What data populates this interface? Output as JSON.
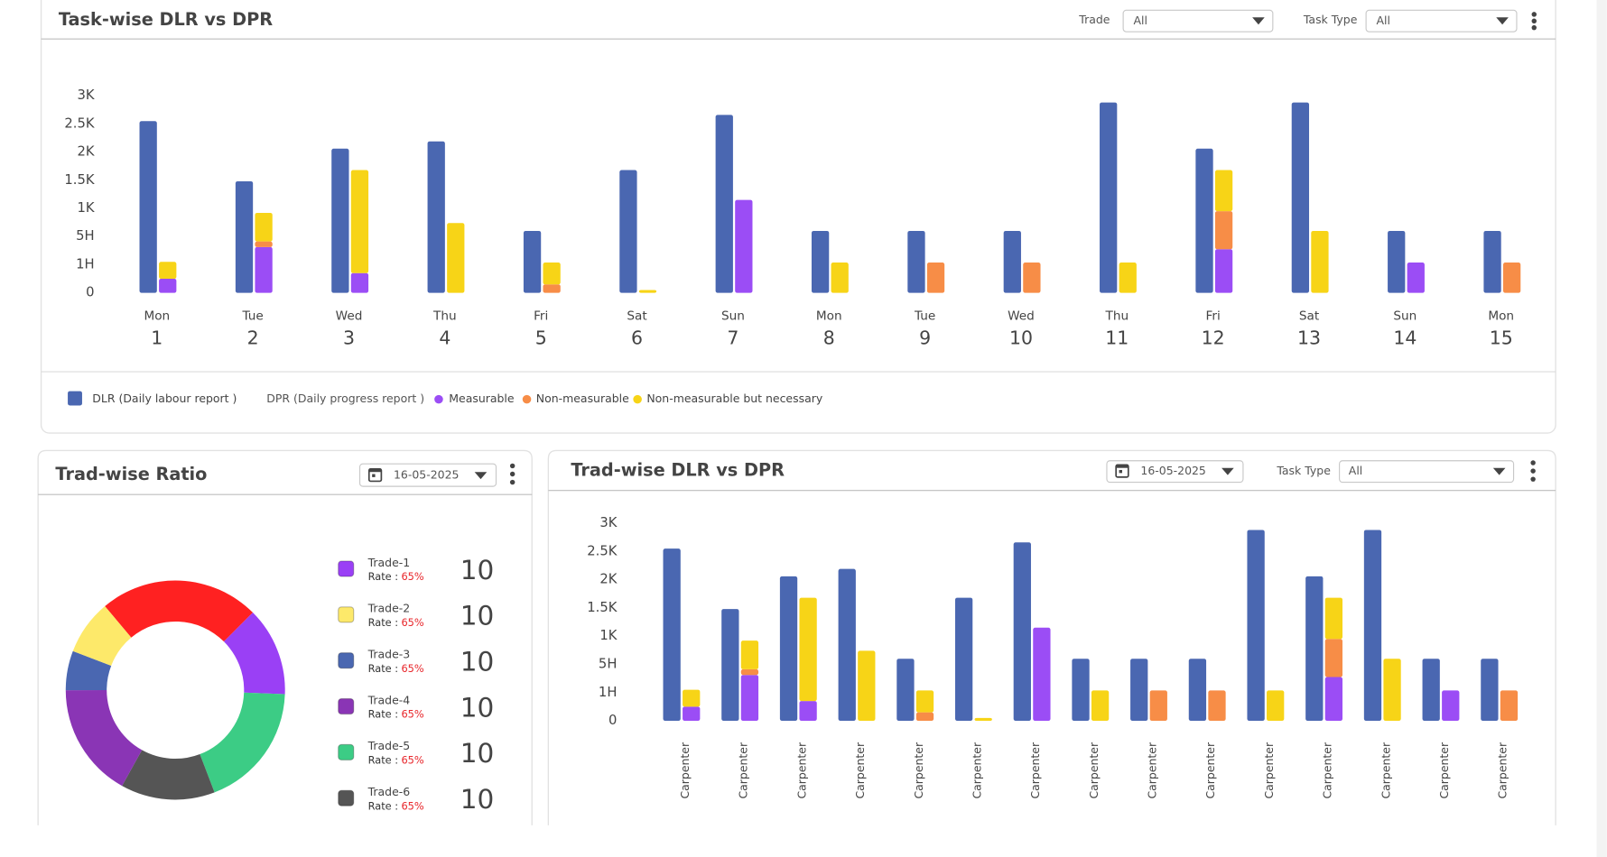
{
  "ui": {
    "top": {
      "trade_label": "Trade",
      "trade_value": "All",
      "task_label": "Task Type",
      "task_value": "All"
    },
    "left": {
      "date": "16-05-2025"
    },
    "right": {
      "date": "16-05-2025",
      "task_label": "Task Type",
      "task_value": "All"
    }
  },
  "chart_data": [
    {
      "type": "bar",
      "title": "Task-wise DLR vs DPR",
      "weekdays": [
        "Mon",
        "Tue",
        "Wed",
        "Thu",
        "Fri",
        "Sat",
        "Sun",
        "Mon",
        "Tue",
        "Wed",
        "Thu",
        "Fri",
        "Sat",
        "Sun",
        "Mon"
      ],
      "categories": [
        "1",
        "2",
        "3",
        "4",
        "5",
        "6",
        "7",
        "8",
        "9",
        "10",
        "11",
        "12",
        "13",
        "14",
        "15"
      ],
      "ylim": [
        0,
        3000
      ],
      "yticks": [
        0,
        {
          "value": 100,
          "label": "1H"
        },
        {
          "value": 500,
          "label": "5H"
        },
        {
          "value": 1000,
          "label": "1K"
        },
        {
          "value": 1500,
          "label": "1.5K"
        },
        {
          "value": 2000,
          "label": "2K"
        },
        {
          "value": 2500,
          "label": "2.5K"
        },
        {
          "value": 3000,
          "label": "3K"
        }
      ],
      "grid": false,
      "dpr_label": "DPR (Daily progress report )",
      "series": [
        {
          "name": "DLR (Daily labour report )",
          "color": "#4a67b1",
          "values": [
            2550,
            1480,
            2060,
            2190,
            600,
            1680,
            2660,
            600,
            600,
            600,
            2880,
            2060,
            2880,
            600,
            600
          ]
        },
        {
          "name": "Measurable",
          "color": "#9b4df5",
          "stack": "DPR",
          "values": [
            50,
            350,
            70,
            0,
            0,
            0,
            1150,
            0,
            0,
            0,
            0,
            320,
            0,
            130,
            0
          ]
        },
        {
          "name": "Non-measurable",
          "color": "#f78d47",
          "stack": "DPR",
          "values": [
            0,
            80,
            0,
            0,
            30,
            0,
            0,
            0,
            130,
            130,
            0,
            630,
            0,
            0,
            130
          ]
        },
        {
          "name": "Non-measurable but necessary",
          "color": "#f7d417",
          "stack": "DPR",
          "values": [
            90,
            490,
            1610,
            740,
            100,
            10,
            0,
            130,
            0,
            0,
            130,
            730,
            600,
            0,
            0
          ]
        }
      ]
    },
    {
      "type": "pie",
      "title": "Trad-wise Ratio",
      "donut": true,
      "values": [
        23.6,
        13.1,
        18.6,
        13.9,
        16.9,
        5.8,
        8.1
      ],
      "colors": [
        "#ff2121",
        "#9a40f5",
        "#3ccc85",
        "#555555",
        "#8a35b5",
        "#4a67b1",
        "#fde96a"
      ],
      "legend": [
        {
          "name": "Trade-1",
          "color": "#9a40f5",
          "rate_label": "Rate :",
          "rate": "65%",
          "count": 10
        },
        {
          "name": "Trade-2",
          "color": "#fde96a",
          "rate_label": "Rate :",
          "rate": "65%",
          "count": 10
        },
        {
          "name": "Trade-3",
          "color": "#4a67b1",
          "rate_label": "Rate :",
          "rate": "65%",
          "count": 10
        },
        {
          "name": "Trade-4",
          "color": "#8a35b5",
          "rate_label": "Rate :",
          "rate": "65%",
          "count": 10
        },
        {
          "name": "Trade-5",
          "color": "#3ccc85",
          "rate_label": "Rate :",
          "rate": "65%",
          "count": 10
        },
        {
          "name": "Trade-6",
          "color": "#555555",
          "rate_label": "Rate :",
          "rate": "65%",
          "count": 10
        }
      ]
    },
    {
      "type": "bar",
      "title": "Trad-wise DLR vs DPR",
      "categories": [
        "Carpenter",
        "Carpenter",
        "Carpenter",
        "Carpenter",
        "Carpenter",
        "Carpenter",
        "Carpenter",
        "Carpenter",
        "Carpenter",
        "Carpenter",
        "Carpenter",
        "Carpenter",
        "Carpenter",
        "Carpenter",
        "Carpenter"
      ],
      "ylim": [
        0,
        3000
      ],
      "yticks": [
        0,
        {
          "value": 100,
          "label": "1H"
        },
        {
          "value": 500,
          "label": "5H"
        },
        {
          "value": 1000,
          "label": "1K"
        },
        {
          "value": 1500,
          "label": "1.5K"
        },
        {
          "value": 2000,
          "label": "2K"
        },
        {
          "value": 2500,
          "label": "2.5K"
        },
        {
          "value": 3000,
          "label": "3K"
        }
      ],
      "grid": false,
      "series": [
        {
          "color": "#4a67b1",
          "values": [
            2550,
            1480,
            2060,
            2190,
            600,
            1680,
            2660,
            600,
            600,
            600,
            2880,
            2060,
            2880,
            600,
            600
          ]
        },
        {
          "color": "#9b4df5",
          "stack": "DPR",
          "values": [
            50,
            350,
            70,
            0,
            0,
            0,
            1150,
            0,
            0,
            0,
            0,
            320,
            0,
            130,
            0
          ]
        },
        {
          "color": "#f78d47",
          "stack": "DPR",
          "values": [
            0,
            80,
            0,
            0,
            30,
            0,
            0,
            0,
            130,
            130,
            0,
            630,
            0,
            0,
            130
          ]
        },
        {
          "color": "#f7d417",
          "stack": "DPR",
          "values": [
            90,
            490,
            1610,
            740,
            100,
            10,
            0,
            130,
            0,
            0,
            130,
            730,
            600,
            0,
            0
          ]
        }
      ]
    }
  ]
}
